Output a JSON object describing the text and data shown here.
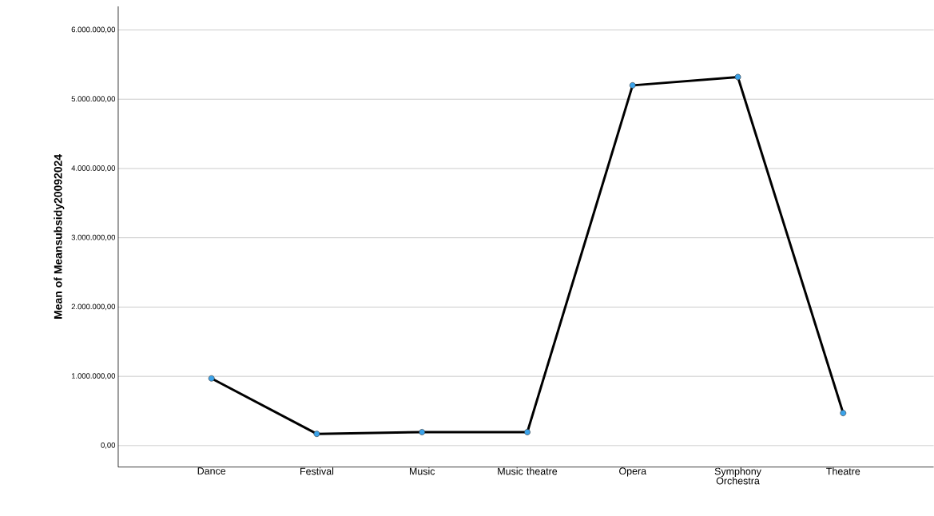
{
  "chart_data": {
    "type": "line",
    "ylabel": "Mean of Meansubsidy20092024",
    "categories": [
      "Dance",
      "Festival",
      "Music",
      "Music theatre",
      "Opera",
      "Symphony Orchestra",
      "Theatre"
    ],
    "series": [
      {
        "color": "#000000",
        "values": [
          970000,
          170000,
          195000,
          195000,
          5200000,
          5320000,
          470000
        ]
      }
    ],
    "colors": [
      "#3ba3ea",
      "#3ba3ea",
      "#3ba3ea",
      "#3ba3ea",
      "#3ba3ea",
      "#3ba3ea",
      "#3ba3ea"
    ],
    "marker": "circle",
    "line_style": "solid",
    "ylim": [
      -310000,
      6340000
    ],
    "yticks": [
      {
        "value": 0,
        "label": "0,00"
      },
      {
        "value": 1000000,
        "label": "1.000.000,00"
      },
      {
        "value": 2000000,
        "label": "2.000.000,00"
      },
      {
        "value": 3000000,
        "label": "3.000.000,00"
      },
      {
        "value": 4000000,
        "label": "4.000.000,00"
      },
      {
        "value": 5000000,
        "label": "5.000.000,00"
      },
      {
        "value": 6000000,
        "label": "6.000.000,00"
      }
    ],
    "grid": "y"
  }
}
